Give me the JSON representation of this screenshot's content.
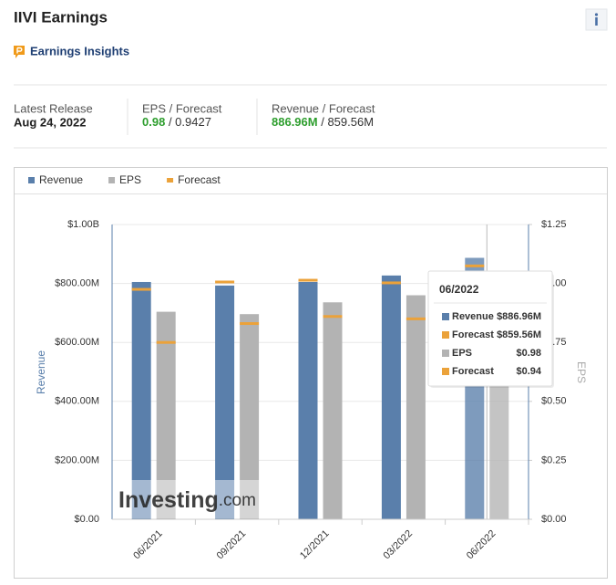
{
  "header": {
    "title": "IIVI Earnings",
    "insights_label": "Earnings Insights"
  },
  "stats": [
    {
      "label": "Latest Release",
      "value": "Aug 24, 2022"
    },
    {
      "label": "EPS / Forecast",
      "actual": "0.98",
      "forecast": "/ 0.9427"
    },
    {
      "label": "Revenue / Forecast",
      "actual": "886.96M",
      "forecast": "/ 859.56M"
    }
  ],
  "chart_data": {
    "type": "bar",
    "categories": [
      "06/2021",
      "09/2021",
      "12/2021",
      "03/2022",
      "06/2022"
    ],
    "y_label": "Revenue",
    "y2_label": "EPS",
    "ylim": [
      0,
      1000000000
    ],
    "yticks": [
      {
        "value": 0,
        "label": "$0.00"
      },
      {
        "value": 200000000,
        "label": "$200.00M"
      },
      {
        "value": 400000000,
        "label": "$400.00M"
      },
      {
        "value": 600000000,
        "label": "$600.00M"
      },
      {
        "value": 800000000,
        "label": "$800.00M"
      },
      {
        "value": 1000000000,
        "label": "$1.00B"
      }
    ],
    "y2lim": [
      0,
      1.25
    ],
    "y2ticks": [
      {
        "value": 0,
        "label": "$0.00"
      },
      {
        "value": 0.25,
        "label": "$0.25"
      },
      {
        "value": 0.5,
        "label": "$0.50"
      },
      {
        "value": 0.75,
        "label": "$0.75"
      },
      {
        "value": 1.0,
        "label": "$1.00"
      },
      {
        "value": 1.25,
        "label": "$1.25"
      }
    ],
    "grid": true,
    "series": [
      {
        "name": "Revenue",
        "color": "#5a7fab",
        "mark": "bar",
        "axis": "y",
        "values": [
          805000000,
          793000000,
          805000000,
          827000000,
          886960000
        ],
        "value_labels": [
          null,
          null,
          null,
          null,
          "$886.96M"
        ]
      },
      {
        "name": "EPS",
        "color": "#b3b3b3",
        "mark": "bar",
        "axis": "y2",
        "values": [
          0.88,
          0.87,
          0.92,
          0.95,
          0.98
        ],
        "value_labels": [
          null,
          null,
          null,
          null,
          "$0.98"
        ]
      },
      {
        "name": "Forecast",
        "color": "#eba23a",
        "mark": "dash",
        "axis": "y",
        "values": [
          780000000,
          805000000,
          811000000,
          802000000,
          859560000
        ],
        "value_labels": [
          null,
          null,
          null,
          null,
          "$859.56M"
        ]
      },
      {
        "name": "Forecast",
        "color": "#eba23a",
        "mark": "dash",
        "axis": "y2",
        "values": [
          0.75,
          0.83,
          0.86,
          0.85,
          0.9427
        ],
        "value_labels": [
          null,
          null,
          null,
          null,
          "$0.94"
        ]
      }
    ],
    "tooltip": {
      "category": "06/2022"
    },
    "watermark": {
      "brand": "Investing",
      "suffix": ".com"
    }
  }
}
